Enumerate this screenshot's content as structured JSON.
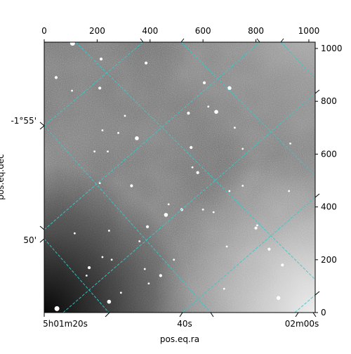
{
  "chart_data": {
    "type": "heatmap",
    "title": "",
    "xlabel": "pos.eq.ra",
    "ylabel": "pos.eq.dec",
    "pixel_axes": {
      "x_range": [
        0,
        1024
      ],
      "y_range": [
        0,
        1024
      ],
      "x_ticks": [
        0,
        200,
        400,
        600,
        800,
        1000
      ],
      "y_ticks": [
        0,
        200,
        400,
        600,
        800,
        1000
      ]
    },
    "world_axes": {
      "ra_tick_labels": [
        "5h01m20s",
        "40s",
        "02m00s"
      ],
      "dec_tick_labels": [
        "-1°55'",
        "50'"
      ]
    },
    "image": {
      "colormap": "grayscale",
      "content": "star field"
    },
    "grid": true,
    "grid_color": "#33cccc",
    "stars": [
      [
        48,
        15,
        5
      ],
      [
        107,
        1020,
        5
      ],
      [
        245,
        41,
        4
      ],
      [
        700,
        850,
        4
      ],
      [
        385,
        945,
        3
      ],
      [
        440,
        140,
        3
      ],
      [
        605,
        870,
        3
      ],
      [
        650,
        760,
        4
      ],
      [
        545,
        755,
        3
      ],
      [
        460,
        370,
        4
      ],
      [
        555,
        625,
        3
      ],
      [
        580,
        530,
        3
      ],
      [
        390,
        325,
        3
      ],
      [
        520,
        390,
        3
      ],
      [
        170,
        170,
        3
      ],
      [
        215,
        960,
        3
      ],
      [
        45,
        890,
        3
      ],
      [
        210,
        850,
        3
      ],
      [
        105,
        840,
        2
      ],
      [
        305,
        745,
        2
      ],
      [
        350,
        660,
        4
      ],
      [
        360,
        270,
        2
      ],
      [
        395,
        110,
        2
      ],
      [
        620,
        780,
        2
      ],
      [
        690,
        250,
        2
      ],
      [
        850,
        240,
        3
      ],
      [
        900,
        180,
        3
      ],
      [
        885,
        55,
        4
      ],
      [
        925,
        460,
        2
      ],
      [
        800,
        320,
        3
      ],
      [
        220,
        690,
        2
      ],
      [
        240,
        610,
        2
      ],
      [
        210,
        490,
        2
      ],
      [
        330,
        480,
        3
      ],
      [
        490,
        200,
        2
      ],
      [
        560,
        550,
        2
      ],
      [
        600,
        390,
        2
      ],
      [
        640,
        380,
        2
      ],
      [
        700,
        460,
        2
      ],
      [
        750,
        620,
        2
      ],
      [
        750,
        480,
        2
      ],
      [
        115,
        300,
        2
      ],
      [
        245,
        310,
        2
      ],
      [
        255,
        200,
        2
      ],
      [
        290,
        75,
        2
      ],
      [
        380,
        165,
        2
      ],
      [
        470,
        410,
        2
      ],
      [
        680,
        90,
        2
      ],
      [
        720,
        700,
        2
      ],
      [
        805,
        330,
        2
      ],
      [
        220,
        210,
        2
      ],
      [
        160,
        140,
        2
      ],
      [
        930,
        640,
        2
      ],
      [
        190,
        610,
        2
      ],
      [
        280,
        680,
        2
      ]
    ]
  }
}
